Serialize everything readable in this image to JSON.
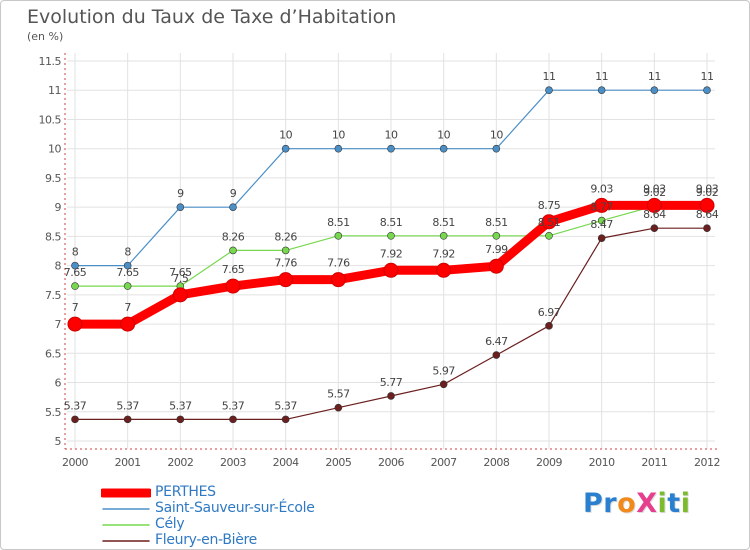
{
  "chart_data": {
    "type": "line",
    "title": "Evolution du Taux de Taxe d’Habitation",
    "subtitle": "(en %)",
    "x": [
      "2000",
      "2001",
      "2002",
      "2003",
      "2004",
      "2005",
      "2006",
      "2007",
      "2008",
      "2009",
      "2010",
      "2011",
      "2012"
    ],
    "ylim": [
      5,
      11.5
    ],
    "yticks": [
      "5",
      "5.5",
      "6",
      "6.5",
      "7",
      "7.5",
      "8",
      "8.5",
      "9",
      "9.5",
      "10",
      "10.5",
      "11",
      "11.5"
    ],
    "grid": true,
    "legend_position": "bottom-left",
    "series": [
      {
        "name": "PERTHES",
        "color": "#ff0000",
        "values": [
          7,
          7,
          7.5,
          7.65,
          7.76,
          7.76,
          7.92,
          7.92,
          7.99,
          8.75,
          9.03,
          9.03,
          9.03
        ]
      },
      {
        "name": "Saint-Sauveur-sur-École",
        "color": "#4b8fc7",
        "values": [
          8,
          8,
          9,
          9,
          10,
          10,
          10,
          10,
          10,
          11,
          11,
          11,
          11
        ]
      },
      {
        "name": "Cély",
        "color": "#77d84f",
        "values": [
          7.65,
          7.65,
          7.65,
          8.26,
          8.26,
          8.51,
          8.51,
          8.51,
          8.51,
          8.51,
          8.77,
          9.02,
          9.02
        ]
      },
      {
        "name": "Fleury-en-Bière",
        "color": "#6b1f1f",
        "values": [
          5.37,
          5.37,
          5.37,
          5.37,
          5.37,
          5.57,
          5.77,
          5.97,
          6.47,
          6.97,
          8.47,
          8.64,
          8.64
        ]
      }
    ]
  },
  "logo": {
    "text": "ProXiti",
    "letters": [
      {
        "ch": "P",
        "color": "#2b7fcf"
      },
      {
        "ch": "r",
        "color": "#2b7fcf"
      },
      {
        "ch": "o",
        "color": "#f08a1c"
      },
      {
        "ch": "X",
        "color": "#e73f8f"
      },
      {
        "ch": "i",
        "color": "#7cbb2e"
      },
      {
        "ch": "t",
        "color": "#2b7fcf"
      },
      {
        "ch": "i",
        "color": "#7cbb2e"
      }
    ]
  }
}
